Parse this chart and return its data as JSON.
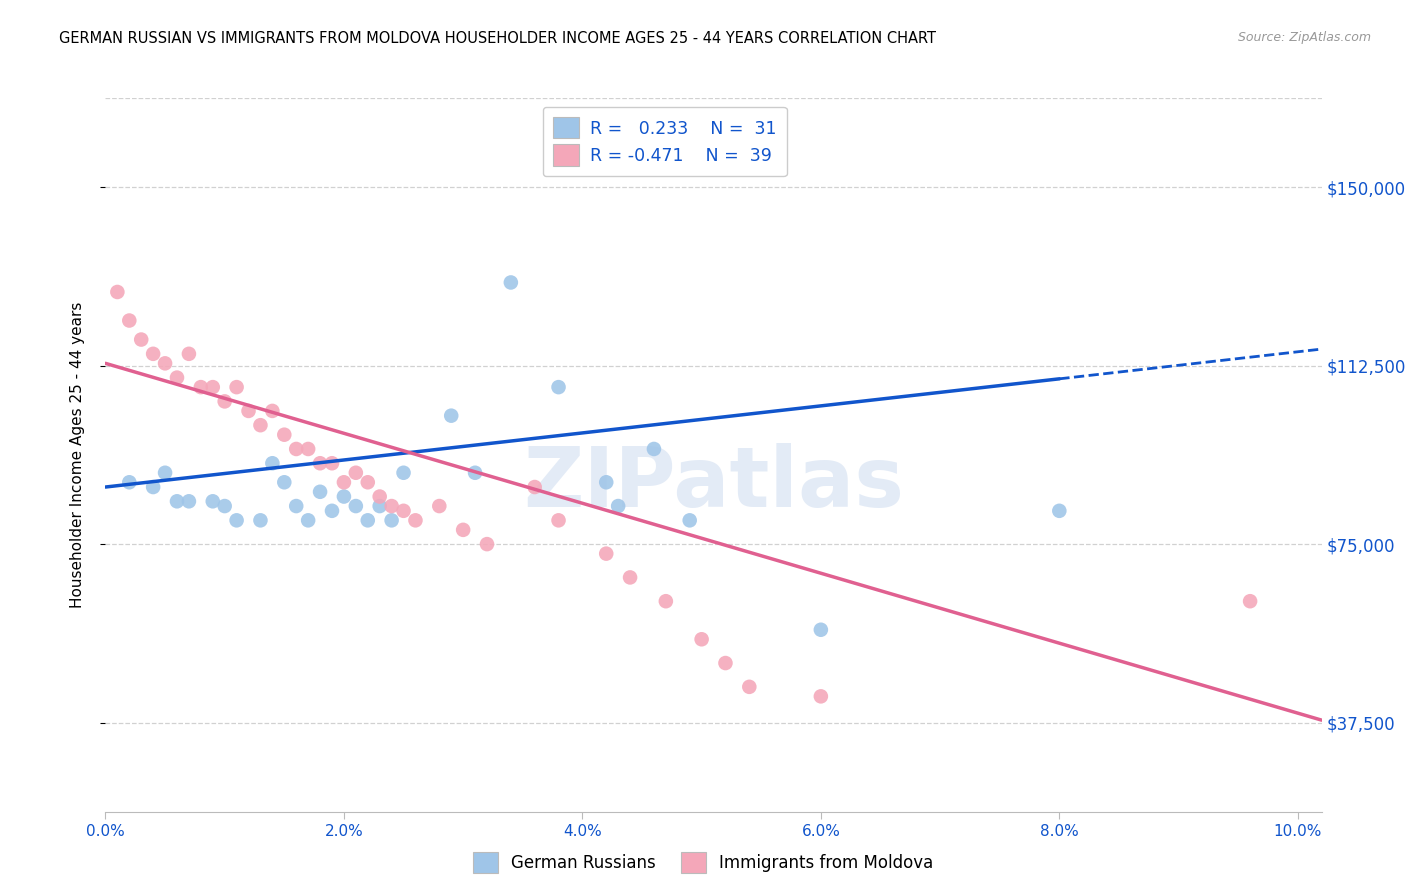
{
  "title": "GERMAN RUSSIAN VS IMMIGRANTS FROM MOLDOVA HOUSEHOLDER INCOME AGES 25 - 44 YEARS CORRELATION CHART",
  "source": "Source: ZipAtlas.com",
  "ylabel": "Householder Income Ages 25 - 44 years",
  "ytick_labels": [
    "$37,500",
    "$75,000",
    "$112,500",
    "$150,000"
  ],
  "ytick_values": [
    37500,
    75000,
    112500,
    150000
  ],
  "ylim": [
    18750,
    168750
  ],
  "xlim": [
    0.0,
    0.102
  ],
  "legend1_r": "0.233",
  "legend1_n": "31",
  "legend2_r": "-0.471",
  "legend2_n": "39",
  "blue_color": "#9fc5e8",
  "pink_color": "#f4a7b9",
  "blue_line_color": "#1155cc",
  "pink_line_color": "#e06090",
  "watermark": "ZIPatlas",
  "blue_points": [
    [
      0.002,
      88000
    ],
    [
      0.004,
      87000
    ],
    [
      0.005,
      90000
    ],
    [
      0.006,
      84000
    ],
    [
      0.007,
      84000
    ],
    [
      0.009,
      84000
    ],
    [
      0.01,
      83000
    ],
    [
      0.011,
      80000
    ],
    [
      0.013,
      80000
    ],
    [
      0.014,
      92000
    ],
    [
      0.015,
      88000
    ],
    [
      0.016,
      83000
    ],
    [
      0.017,
      80000
    ],
    [
      0.018,
      86000
    ],
    [
      0.019,
      82000
    ],
    [
      0.02,
      85000
    ],
    [
      0.021,
      83000
    ],
    [
      0.022,
      80000
    ],
    [
      0.023,
      83000
    ],
    [
      0.024,
      80000
    ],
    [
      0.025,
      90000
    ],
    [
      0.029,
      102000
    ],
    [
      0.031,
      90000
    ],
    [
      0.034,
      130000
    ],
    [
      0.038,
      108000
    ],
    [
      0.042,
      88000
    ],
    [
      0.043,
      83000
    ],
    [
      0.046,
      95000
    ],
    [
      0.049,
      80000
    ],
    [
      0.06,
      57000
    ],
    [
      0.08,
      82000
    ]
  ],
  "pink_points": [
    [
      0.001,
      128000
    ],
    [
      0.002,
      122000
    ],
    [
      0.003,
      118000
    ],
    [
      0.004,
      115000
    ],
    [
      0.005,
      113000
    ],
    [
      0.006,
      110000
    ],
    [
      0.007,
      115000
    ],
    [
      0.008,
      108000
    ],
    [
      0.009,
      108000
    ],
    [
      0.01,
      105000
    ],
    [
      0.011,
      108000
    ],
    [
      0.012,
      103000
    ],
    [
      0.013,
      100000
    ],
    [
      0.014,
      103000
    ],
    [
      0.015,
      98000
    ],
    [
      0.016,
      95000
    ],
    [
      0.017,
      95000
    ],
    [
      0.018,
      92000
    ],
    [
      0.019,
      92000
    ],
    [
      0.02,
      88000
    ],
    [
      0.021,
      90000
    ],
    [
      0.022,
      88000
    ],
    [
      0.023,
      85000
    ],
    [
      0.024,
      83000
    ],
    [
      0.025,
      82000
    ],
    [
      0.026,
      80000
    ],
    [
      0.028,
      83000
    ],
    [
      0.03,
      78000
    ],
    [
      0.032,
      75000
    ],
    [
      0.036,
      87000
    ],
    [
      0.038,
      80000
    ],
    [
      0.042,
      73000
    ],
    [
      0.044,
      68000
    ],
    [
      0.047,
      63000
    ],
    [
      0.05,
      55000
    ],
    [
      0.052,
      50000
    ],
    [
      0.054,
      45000
    ],
    [
      0.06,
      43000
    ],
    [
      0.096,
      63000
    ]
  ],
  "blue_scatter_s": 110,
  "pink_scatter_s": 110,
  "grid_color": "#cccccc",
  "blue_line_solid_end": 0.08,
  "xtick_vals": [
    0.0,
    0.02,
    0.04,
    0.06,
    0.08,
    0.1
  ],
  "xtick_labels": [
    "0.0%",
    "2.0%",
    "4.0%",
    "6.0%",
    "8.0%",
    "10.0%"
  ]
}
